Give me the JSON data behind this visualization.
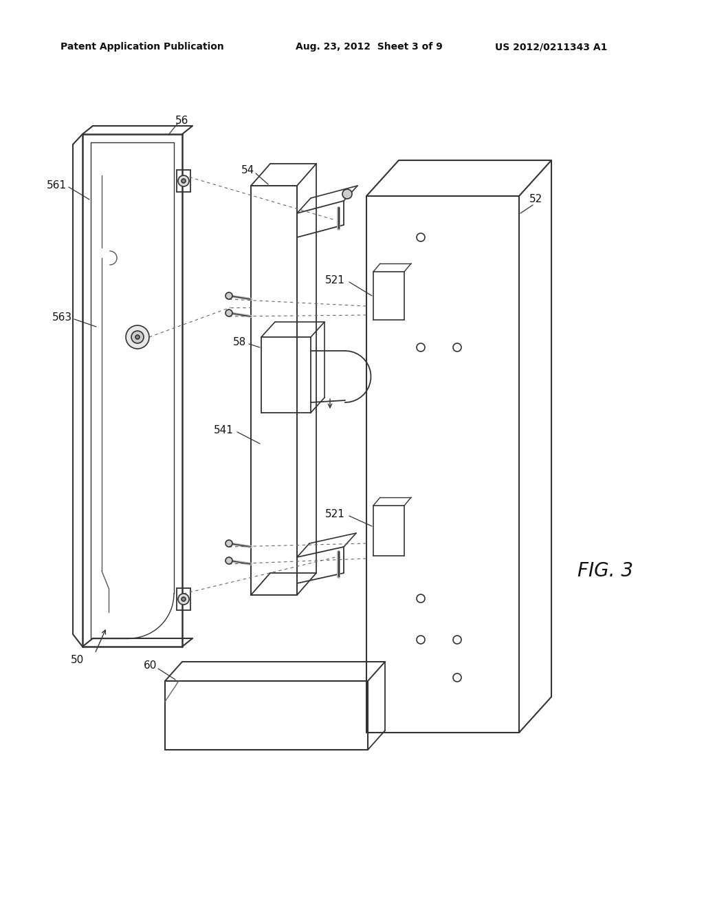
{
  "background_color": "#ffffff",
  "header_left": "Patent Application Publication",
  "header_center": "Aug. 23, 2012  Sheet 3 of 9",
  "header_right": "US 2012/0211343 A1",
  "line_color": "#333333",
  "dash_color": "#666666",
  "fig_label": "FIG. 3"
}
